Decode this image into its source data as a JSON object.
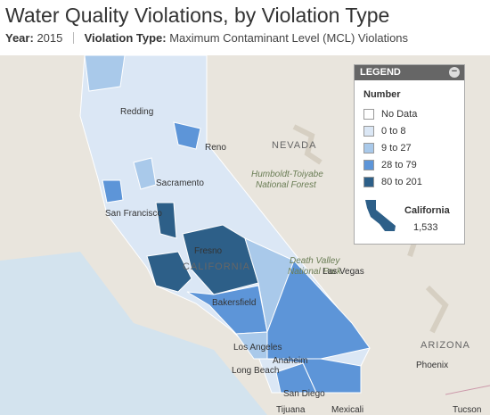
{
  "header": {
    "title": "Water Quality Violations, by Violation Type",
    "year_label": "Year:",
    "year": "2015",
    "type_label": "Violation Type:",
    "type": "Maximum Contaminant Level (MCL) Violations"
  },
  "legend": {
    "title": "LEGEND",
    "subtitle": "Number",
    "items": [
      {
        "label": "No Data",
        "color": "#ffffff"
      },
      {
        "label": "0 to 8",
        "color": "#dbe7f5"
      },
      {
        "label": "9 to 27",
        "color": "#a9c9ea"
      },
      {
        "label": "28 to 79",
        "color": "#5d95d8"
      },
      {
        "label": "80 to 201",
        "color": "#2d5f88"
      }
    ],
    "state": "California",
    "total": "1,533"
  },
  "map": {
    "labels": [
      "NEVADA",
      "Humboldt-Toiyabe",
      "National Forest",
      "Reno",
      "Redding",
      "Sacramento",
      "San Francisco",
      "Fresno",
      "CALIFORNIA",
      "Death Valley",
      "National Park",
      "Las Vegas",
      "Bakersfield",
      "Los Angeles",
      "Anaheim",
      "Long Beach",
      "San Diego",
      "Tijuana",
      "Mexicali",
      "ARIZONA",
      "Phoenix",
      "Tucson"
    ]
  }
}
